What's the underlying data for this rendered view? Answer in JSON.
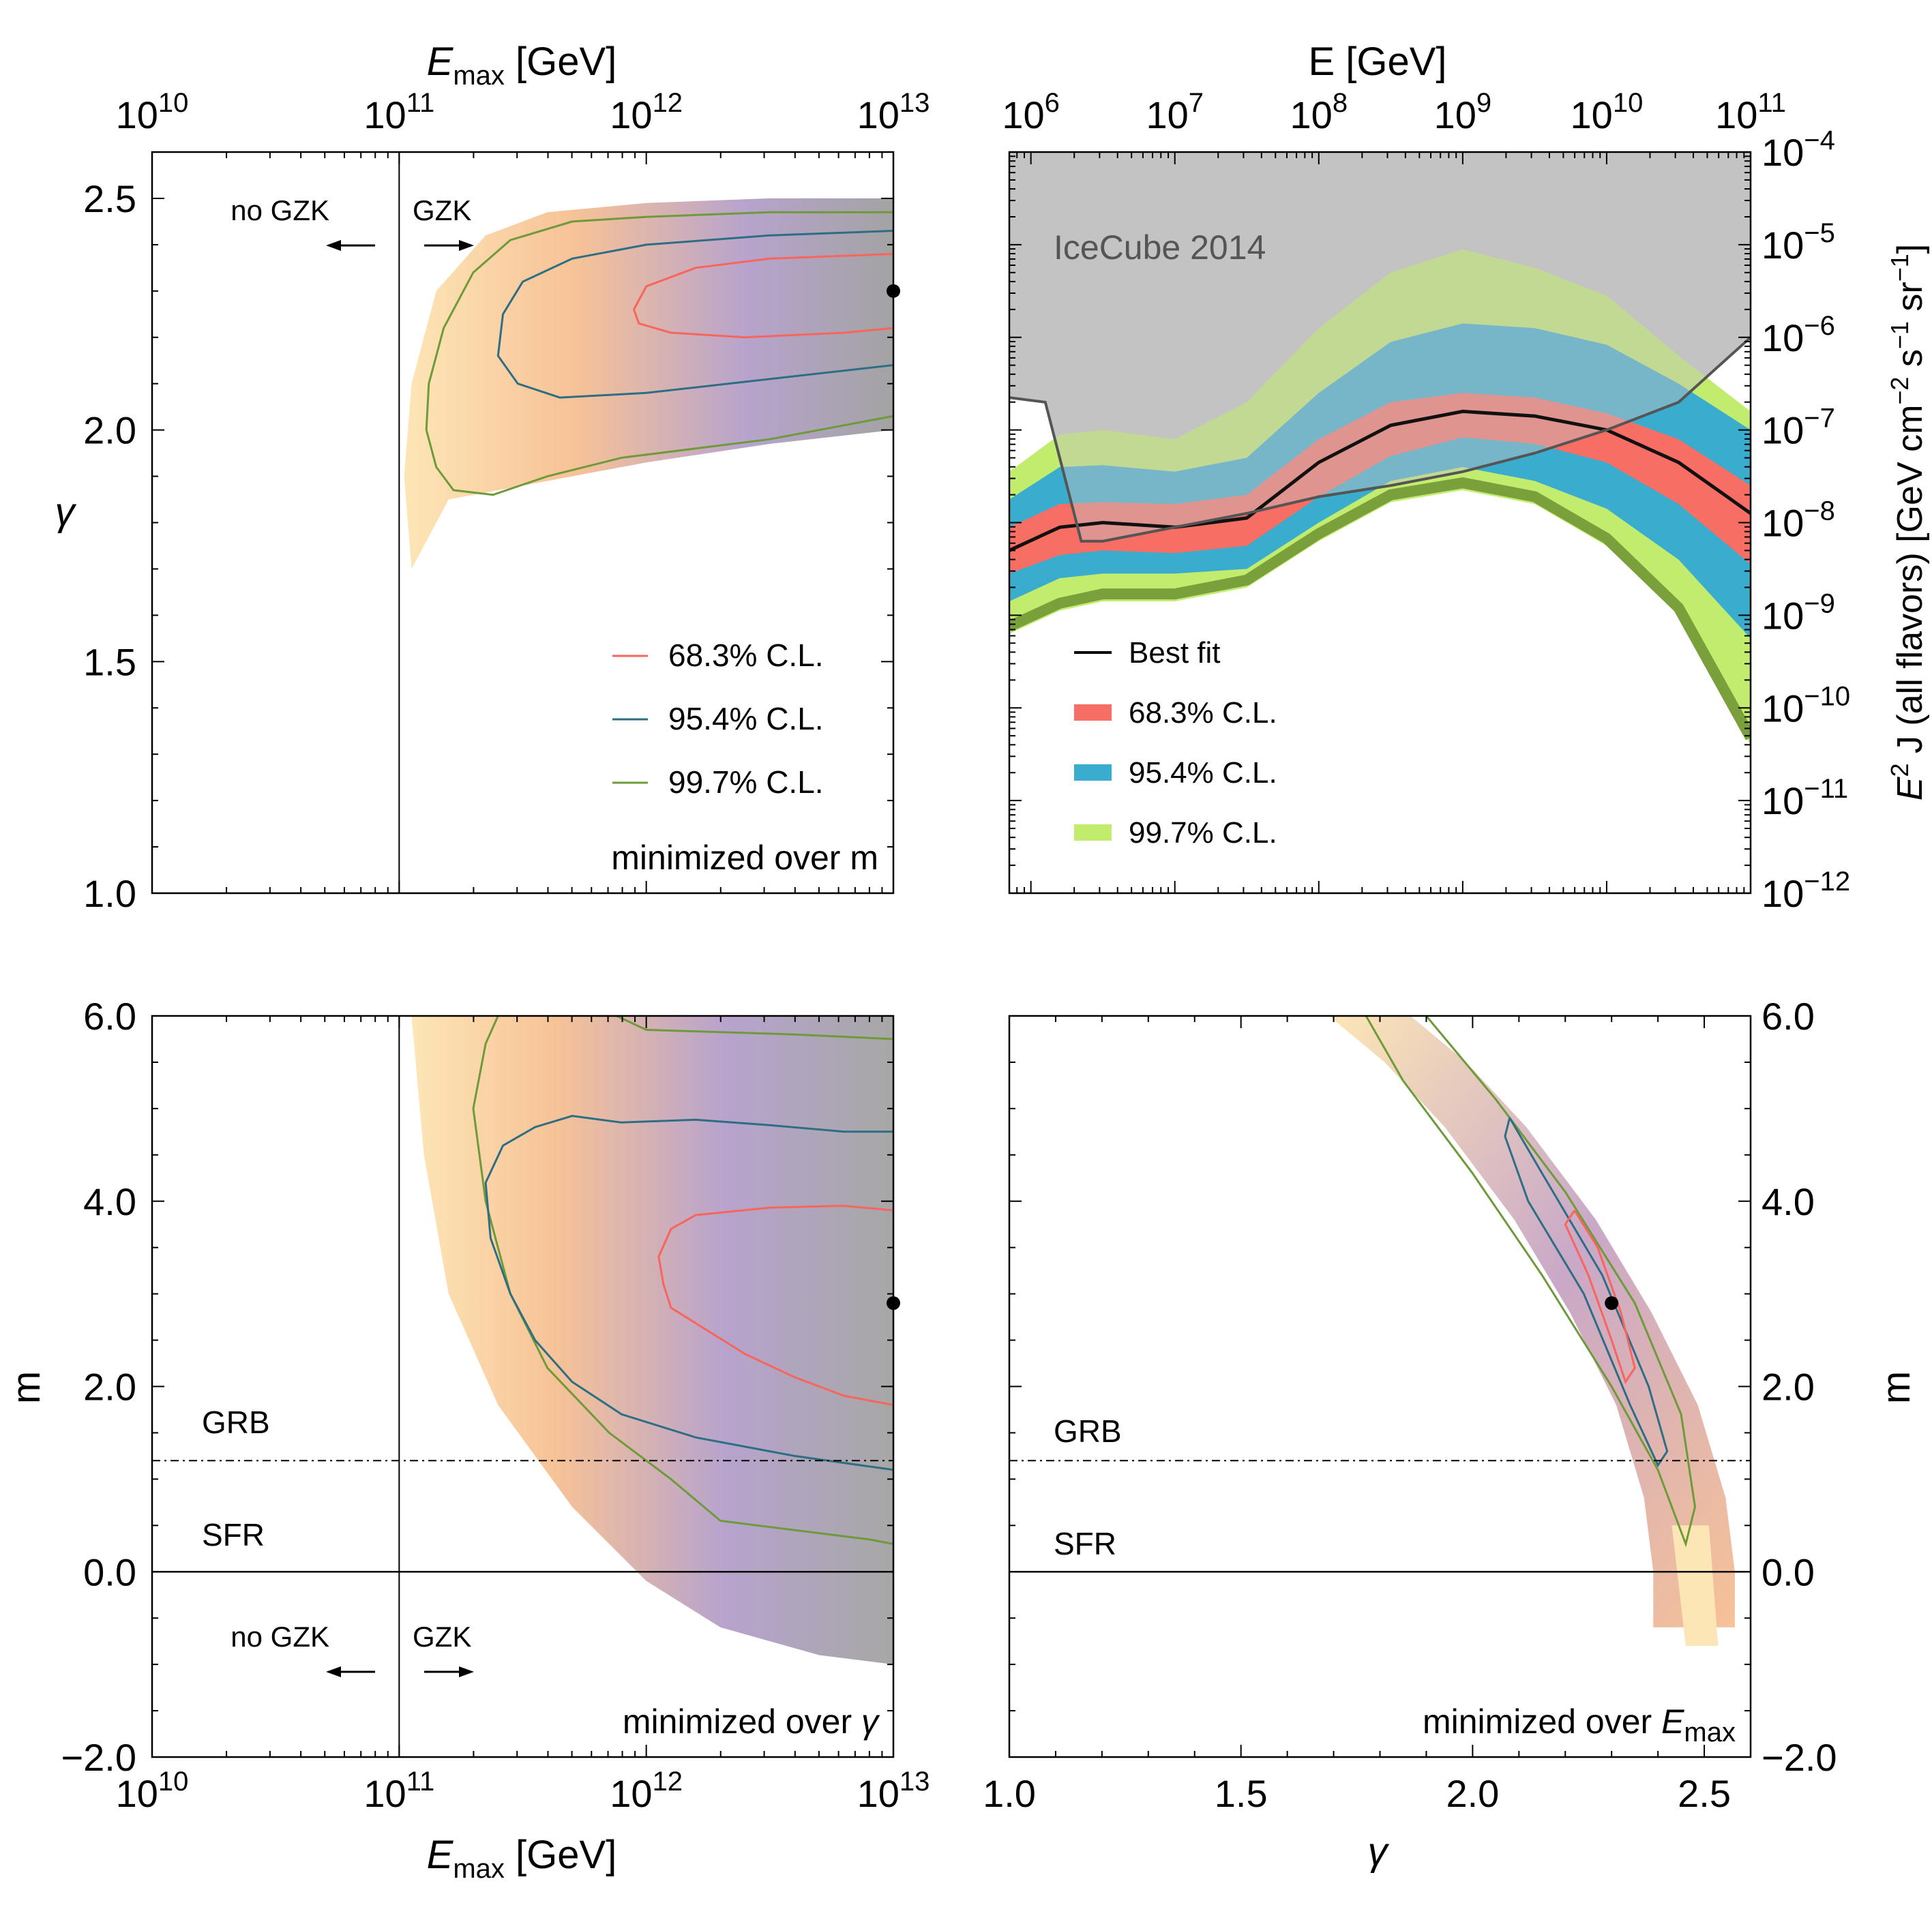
{
  "colors": {
    "cl683": "#f7655c",
    "cl954": "#2d6e84",
    "cl997": "#6e9a3a",
    "band683": "#f76e64",
    "band954": "#3aaccd",
    "band997": "#c2ec6e",
    "band997_edge": "#7aa03c",
    "icecube": "#c3c3c3",
    "heat_outer": "#fde6b6",
    "heat_mid": "#f7c297",
    "heat_inner": "#b7a3cd",
    "heat_core": "#a3a3a3"
  },
  "chart_data": [
    {
      "id": "top-left",
      "type": "heatmap",
      "title": "minimized over m",
      "xlabel_base": "E",
      "xlabel_sub": "max",
      "xlabel_unit": " [GeV]",
      "ylabel": "γ",
      "x_scale": "log",
      "xlim_log10": [
        10,
        13
      ],
      "ylim": [
        1.0,
        2.6
      ],
      "x_ticks": [
        {
          "base": "10",
          "exp": "10"
        },
        {
          "base": "10",
          "exp": "11"
        },
        {
          "base": "10",
          "exp": "12"
        },
        {
          "base": "10",
          "exp": "13"
        }
      ],
      "y_ticks": [
        "1.0",
        "1.5",
        "2.0",
        "2.5"
      ],
      "y_tick_values": [
        1.0,
        1.5,
        2.0,
        2.5
      ],
      "gzk_line_log10": 11,
      "annotations": {
        "no_gzk": "no GZK",
        "gzk": "GZK"
      },
      "best_fit": {
        "log10_emax": 13.0,
        "gamma": 2.3
      },
      "legend": [
        "68.3% C.L.",
        "95.4% C.L.",
        "99.7% C.L."
      ],
      "contours": {
        "cl683": [
          [
            13,
            2.38
          ],
          [
            12.5,
            2.37
          ],
          [
            12.2,
            2.35
          ],
          [
            12.0,
            2.31
          ],
          [
            11.95,
            2.26
          ],
          [
            11.97,
            2.23
          ],
          [
            12.1,
            2.21
          ],
          [
            12.4,
            2.2
          ],
          [
            12.8,
            2.21
          ],
          [
            13,
            2.22
          ]
        ],
        "cl954": [
          [
            13,
            2.43
          ],
          [
            12.5,
            2.42
          ],
          [
            12.0,
            2.4
          ],
          [
            11.7,
            2.37
          ],
          [
            11.5,
            2.32
          ],
          [
            11.42,
            2.25
          ],
          [
            11.4,
            2.16
          ],
          [
            11.48,
            2.1
          ],
          [
            11.65,
            2.07
          ],
          [
            12.0,
            2.08
          ],
          [
            12.5,
            2.11
          ],
          [
            13,
            2.14
          ]
        ],
        "cl997": [
          [
            13,
            2.47
          ],
          [
            12.5,
            2.47
          ],
          [
            12.0,
            2.46
          ],
          [
            11.7,
            2.45
          ],
          [
            11.45,
            2.41
          ],
          [
            11.3,
            2.34
          ],
          [
            11.18,
            2.22
          ],
          [
            11.12,
            2.1
          ],
          [
            11.11,
            2.0
          ],
          [
            11.15,
            1.92
          ],
          [
            11.22,
            1.87
          ],
          [
            11.38,
            1.86
          ],
          [
            11.6,
            1.9
          ],
          [
            11.9,
            1.94
          ],
          [
            12.2,
            1.96
          ],
          [
            12.5,
            1.98
          ],
          [
            12.8,
            2.01
          ],
          [
            13,
            2.03
          ]
        ]
      }
    },
    {
      "id": "top-right",
      "type": "area",
      "xlabel": "E [GeV]",
      "ylabel_main": "E",
      "ylabel_sup": "2",
      "ylabel_rest": " J  (all flavors)  [GeV cm",
      "ylabel_units": [
        "−2",
        "−1",
        "−1"
      ],
      "x_scale": "log",
      "xlim_log10": [
        5.85,
        11
      ],
      "y_scale": "log",
      "ylim_log10": [
        -12,
        -4
      ],
      "x_ticks": [
        {
          "base": "10",
          "exp": "6"
        },
        {
          "base": "10",
          "exp": "7"
        },
        {
          "base": "10",
          "exp": "8"
        },
        {
          "base": "10",
          "exp": "9"
        },
        {
          "base": "10",
          "exp": "10"
        },
        {
          "base": "10",
          "exp": "11"
        }
      ],
      "y_ticks": [
        {
          "base": "10",
          "exp": "−4"
        },
        {
          "base": "10",
          "exp": "−5"
        },
        {
          "base": "10",
          "exp": "−6"
        },
        {
          "base": "10",
          "exp": "−7"
        },
        {
          "base": "10",
          "exp": "−8"
        },
        {
          "base": "10",
          "exp": "−9"
        },
        {
          "base": "10",
          "exp": "−10"
        },
        {
          "base": "10",
          "exp": "−11"
        },
        {
          "base": "10",
          "exp": "−12"
        }
      ],
      "y_tick_values": [
        -4,
        -5,
        -6,
        -7,
        -8,
        -9,
        -10,
        -11,
        -12
      ],
      "icecube_label": "IceCube 2014",
      "legend": [
        "Best fit",
        "68.3% C.L.",
        "95.4% C.L.",
        "99.7% C.L."
      ],
      "x_log10": [
        5.85,
        6.2,
        6.5,
        7.0,
        7.5,
        8.0,
        8.5,
        9.0,
        9.5,
        10.0,
        10.5,
        11.0
      ],
      "best_fit_log10": [
        -8.3,
        -8.05,
        -8.0,
        -8.05,
        -7.95,
        -7.35,
        -6.95,
        -6.8,
        -6.85,
        -7.0,
        -7.35,
        -7.9
      ],
      "band683_upper": [
        -8.05,
        -7.8,
        -7.78,
        -7.8,
        -7.7,
        -7.1,
        -6.7,
        -6.6,
        -6.65,
        -6.82,
        -7.1,
        -7.6
      ],
      "band683_lower": [
        -8.55,
        -8.35,
        -8.3,
        -8.33,
        -8.25,
        -7.72,
        -7.28,
        -7.08,
        -7.15,
        -7.35,
        -7.8,
        -8.45
      ],
      "band954_upper": [
        -7.75,
        -7.4,
        -7.38,
        -7.45,
        -7.3,
        -6.6,
        -6.05,
        -5.85,
        -5.9,
        -6.08,
        -6.5,
        -7.0
      ],
      "band954_lower": [
        -8.85,
        -8.6,
        -8.55,
        -8.55,
        -8.5,
        -8.0,
        -7.55,
        -7.4,
        -7.55,
        -7.85,
        -8.4,
        -9.25
      ],
      "band997_upper": [
        -7.45,
        -7.05,
        -7.0,
        -7.1,
        -6.7,
        -5.9,
        -5.3,
        -5.05,
        -5.25,
        -5.55,
        -6.2,
        -6.8
      ],
      "band997_lower": [
        -9.2,
        -8.95,
        -8.85,
        -8.85,
        -8.7,
        -8.2,
        -7.78,
        -7.65,
        -7.8,
        -8.25,
        -9.0,
        -10.4
      ],
      "icecube_limit_x_log10": [
        5.85,
        6.1,
        6.2,
        6.35,
        6.5,
        7.0,
        7.5,
        8.0,
        8.5,
        9.0,
        9.5,
        10.0,
        10.5,
        11.0
      ],
      "icecube_limit_y_log10": [
        -6.65,
        -6.7,
        -7.3,
        -8.2,
        -8.2,
        -8.05,
        -7.9,
        -7.72,
        -7.6,
        -7.45,
        -7.25,
        -7.0,
        -6.7,
        -6.0
      ]
    },
    {
      "id": "bottom-left",
      "type": "heatmap",
      "title_main": "minimized over ",
      "title_sym": "γ",
      "xlabel_base": "E",
      "xlabel_sub": "max",
      "xlabel_unit": " [GeV]",
      "ylabel": "m",
      "x_scale": "log",
      "xlim_log10": [
        10,
        13
      ],
      "ylim": [
        -2.0,
        6.0
      ],
      "x_ticks": [
        {
          "base": "10",
          "exp": "10"
        },
        {
          "base": "10",
          "exp": "11"
        },
        {
          "base": "10",
          "exp": "12"
        },
        {
          "base": "10",
          "exp": "13"
        }
      ],
      "y_ticks": [
        "−2.0",
        "0.0",
        "2.0",
        "4.0",
        "6.0"
      ],
      "y_tick_values": [
        -2,
        0,
        2,
        4,
        6
      ],
      "gzk_line_log10": 11,
      "annotations": {
        "no_gzk": "no GZK",
        "gzk": "GZK",
        "grb": "GRB",
        "sfr": "SFR"
      },
      "grb_level": 1.2,
      "sfr_level": 0.0,
      "best_fit": {
        "log10_emax": 13.0,
        "m": 2.9
      },
      "contours": {
        "cl683": [
          [
            13,
            3.9
          ],
          [
            12.8,
            3.95
          ],
          [
            12.5,
            3.93
          ],
          [
            12.2,
            3.85
          ],
          [
            12.1,
            3.7
          ],
          [
            12.05,
            3.4
          ],
          [
            12.07,
            3.1
          ],
          [
            12.1,
            2.85
          ],
          [
            12.25,
            2.6
          ],
          [
            12.4,
            2.35
          ],
          [
            12.6,
            2.1
          ],
          [
            12.8,
            1.9
          ],
          [
            13,
            1.8
          ]
        ],
        "cl954": [
          [
            13,
            4.75
          ],
          [
            12.8,
            4.75
          ],
          [
            12.5,
            4.82
          ],
          [
            12.2,
            4.88
          ],
          [
            11.9,
            4.85
          ],
          [
            11.7,
            4.92
          ],
          [
            11.55,
            4.8
          ],
          [
            11.42,
            4.6
          ],
          [
            11.35,
            4.2
          ],
          [
            11.37,
            3.6
          ],
          [
            11.45,
            3.0
          ],
          [
            11.55,
            2.5
          ],
          [
            11.7,
            2.05
          ],
          [
            11.9,
            1.7
          ],
          [
            12.2,
            1.45
          ],
          [
            12.6,
            1.25
          ],
          [
            13,
            1.1
          ]
        ],
        "cl997": [
          [
            13,
            5.75
          ],
          [
            12.6,
            5.8
          ],
          [
            12.0,
            5.85
          ],
          [
            11.88,
            6.0
          ],
          [
            11.8,
            6.0
          ]
        ],
        "cl997b": [
          [
            11.4,
            6.0
          ],
          [
            11.35,
            5.7
          ],
          [
            11.3,
            5.0
          ],
          [
            11.35,
            4.0
          ],
          [
            11.45,
            3.0
          ],
          [
            11.6,
            2.2
          ],
          [
            11.85,
            1.5
          ],
          [
            12.1,
            1.0
          ],
          [
            12.3,
            0.55
          ],
          [
            12.6,
            0.45
          ],
          [
            12.9,
            0.35
          ],
          [
            13,
            0.3
          ]
        ]
      }
    },
    {
      "id": "bottom-right",
      "type": "heatmap",
      "title_main": "minimized over ",
      "title_sym_base": "E",
      "title_sym_sub": "max",
      "xlabel": "γ",
      "ylabel": "m",
      "xlim": [
        1.0,
        2.6
      ],
      "ylim": [
        -2.0,
        6.0
      ],
      "x_ticks": [
        "1.0",
        "1.5",
        "2.0",
        "2.5"
      ],
      "x_tick_values": [
        1.0,
        1.5,
        2.0,
        2.5
      ],
      "y_ticks": [
        "−2.0",
        "0.0",
        "2.0",
        "4.0",
        "6.0"
      ],
      "y_tick_values": [
        -2,
        0,
        2,
        4,
        6
      ],
      "annotations": {
        "grb": "GRB",
        "sfr": "SFR"
      },
      "grb_level": 1.2,
      "sfr_level": 0.0,
      "best_fit": {
        "gamma": 2.3,
        "m": 2.9
      },
      "contours": {
        "cl683": [
          [
            2.22,
            3.9
          ],
          [
            2.27,
            3.5
          ],
          [
            2.32,
            2.8
          ],
          [
            2.35,
            2.2
          ],
          [
            2.33,
            2.05
          ],
          [
            2.3,
            2.5
          ],
          [
            2.25,
            3.2
          ],
          [
            2.2,
            3.75
          ],
          [
            2.22,
            3.9
          ]
        ],
        "cl954": [
          [
            2.08,
            4.9
          ],
          [
            2.15,
            4.3
          ],
          [
            2.28,
            3.2
          ],
          [
            2.38,
            2.0
          ],
          [
            2.42,
            1.3
          ],
          [
            2.4,
            1.15
          ],
          [
            2.34,
            1.8
          ],
          [
            2.24,
            3.0
          ],
          [
            2.12,
            4.0
          ],
          [
            2.07,
            4.7
          ],
          [
            2.08,
            4.9
          ]
        ],
        "cl997": [
          [
            1.9,
            6.0
          ],
          [
            2.05,
            5.1
          ],
          [
            2.2,
            4.1
          ],
          [
            2.35,
            2.9
          ],
          [
            2.45,
            1.7
          ],
          [
            2.48,
            0.7
          ],
          [
            2.46,
            0.3
          ],
          [
            2.4,
            1.1
          ],
          [
            2.3,
            2.0
          ],
          [
            2.15,
            3.2
          ],
          [
            2.0,
            4.3
          ],
          [
            1.85,
            5.3
          ],
          [
            1.77,
            6.0
          ]
        ]
      },
      "ridge_top": [
        [
          1.8,
          6.0
        ],
        [
          1.92,
          5.5
        ],
        [
          2.05,
          4.8
        ],
        [
          2.2,
          3.8
        ],
        [
          2.32,
          2.8
        ],
        [
          2.42,
          1.8
        ],
        [
          2.48,
          0.8
        ],
        [
          2.5,
          0.0
        ],
        [
          2.5,
          -0.6
        ]
      ],
      "ridge_halfwidth_gamma": 0.11
    }
  ]
}
